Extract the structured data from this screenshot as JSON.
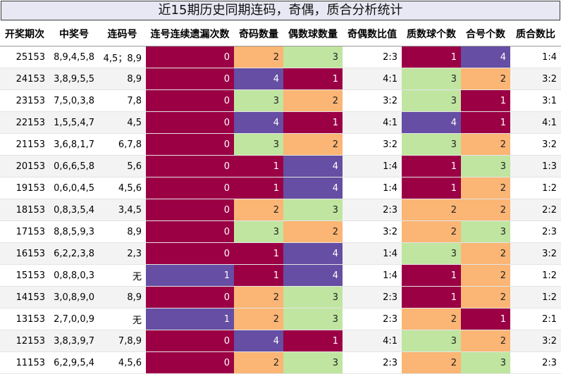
{
  "title": "近15期历史同期连码，奇偶，质合分析统计",
  "headers": [
    "开奖期次",
    "中奖号",
    "连码号",
    "连号连续遗漏次数",
    "奇码数量",
    "偶数球数量",
    "奇偶数比值",
    "质数球个数",
    "合号个数",
    "质合数比"
  ],
  "colors": {
    "crimson": "#9b0045",
    "orange": "#fbb574",
    "green": "#c0e5a0",
    "purple": "#654ea3"
  },
  "rows": [
    {
      "period": "25153",
      "nums": "8,9,4,5,8",
      "link": "4,5；8,9",
      "gap": "0",
      "gap_c": "crimson",
      "odd": "2",
      "odd_c": "orange",
      "even": "3",
      "even_c": "green",
      "oe": "2:3",
      "prime": "1",
      "prime_c": "crimson",
      "comp": "4",
      "comp_c": "purple",
      "pc": "1:4"
    },
    {
      "period": "24153",
      "nums": "3,8,9,5,5",
      "link": "8,9",
      "gap": "0",
      "gap_c": "crimson",
      "odd": "4",
      "odd_c": "purple",
      "even": "1",
      "even_c": "crimson",
      "oe": "4:1",
      "prime": "3",
      "prime_c": "green",
      "comp": "2",
      "comp_c": "orange",
      "pc": "3:2"
    },
    {
      "period": "23153",
      "nums": "7,5,0,3,8",
      "link": "7,8",
      "gap": "0",
      "gap_c": "crimson",
      "odd": "3",
      "odd_c": "green",
      "even": "2",
      "even_c": "orange",
      "oe": "3:2",
      "prime": "3",
      "prime_c": "green",
      "comp": "1",
      "comp_c": "crimson",
      "pc": "3:1"
    },
    {
      "period": "22153",
      "nums": "1,5,5,4,7",
      "link": "4,5",
      "gap": "0",
      "gap_c": "crimson",
      "odd": "4",
      "odd_c": "purple",
      "even": "1",
      "even_c": "crimson",
      "oe": "4:1",
      "prime": "4",
      "prime_c": "purple",
      "comp": "1",
      "comp_c": "crimson",
      "pc": "4:1"
    },
    {
      "period": "21153",
      "nums": "3,6,8,1,7",
      "link": "6,7,8",
      "gap": "0",
      "gap_c": "crimson",
      "odd": "3",
      "odd_c": "green",
      "even": "2",
      "even_c": "orange",
      "oe": "3:2",
      "prime": "3",
      "prime_c": "green",
      "comp": "2",
      "comp_c": "orange",
      "pc": "3:2"
    },
    {
      "period": "20153",
      "nums": "0,6,6,5,8",
      "link": "5,6",
      "gap": "0",
      "gap_c": "crimson",
      "odd": "1",
      "odd_c": "crimson",
      "even": "4",
      "even_c": "purple",
      "oe": "1:4",
      "prime": "1",
      "prime_c": "crimson",
      "comp": "3",
      "comp_c": "green",
      "pc": "1:3"
    },
    {
      "period": "19153",
      "nums": "0,6,0,4,5",
      "link": "4,5,6",
      "gap": "0",
      "gap_c": "crimson",
      "odd": "1",
      "odd_c": "crimson",
      "even": "4",
      "even_c": "purple",
      "oe": "1:4",
      "prime": "1",
      "prime_c": "crimson",
      "comp": "2",
      "comp_c": "orange",
      "pc": "1:2"
    },
    {
      "period": "18153",
      "nums": "0,8,3,5,4",
      "link": "3,4,5",
      "gap": "0",
      "gap_c": "crimson",
      "odd": "2",
      "odd_c": "orange",
      "even": "3",
      "even_c": "green",
      "oe": "2:3",
      "prime": "2",
      "prime_c": "orange",
      "comp": "2",
      "comp_c": "orange",
      "pc": "2:2"
    },
    {
      "period": "17153",
      "nums": "8,8,5,9,3",
      "link": "8,9",
      "gap": "0",
      "gap_c": "crimson",
      "odd": "3",
      "odd_c": "green",
      "even": "2",
      "even_c": "orange",
      "oe": "3:2",
      "prime": "2",
      "prime_c": "orange",
      "comp": "3",
      "comp_c": "green",
      "pc": "2:3"
    },
    {
      "period": "16153",
      "nums": "6,2,2,3,8",
      "link": "2,3",
      "gap": "0",
      "gap_c": "crimson",
      "odd": "1",
      "odd_c": "crimson",
      "even": "4",
      "even_c": "purple",
      "oe": "1:4",
      "prime": "3",
      "prime_c": "green",
      "comp": "2",
      "comp_c": "orange",
      "pc": "3:2"
    },
    {
      "period": "15153",
      "nums": "0,8,8,0,3",
      "link": "无",
      "gap": "1",
      "gap_c": "purple",
      "odd": "1",
      "odd_c": "crimson",
      "even": "4",
      "even_c": "purple",
      "oe": "1:4",
      "prime": "1",
      "prime_c": "crimson",
      "comp": "2",
      "comp_c": "orange",
      "pc": "1:2"
    },
    {
      "period": "14153",
      "nums": "3,0,8,9,0",
      "link": "8,9",
      "gap": "0",
      "gap_c": "crimson",
      "odd": "2",
      "odd_c": "orange",
      "even": "3",
      "even_c": "green",
      "oe": "2:3",
      "prime": "1",
      "prime_c": "crimson",
      "comp": "2",
      "comp_c": "orange",
      "pc": "1:2"
    },
    {
      "period": "13153",
      "nums": "2,7,0,0,9",
      "link": "无",
      "gap": "1",
      "gap_c": "purple",
      "odd": "2",
      "odd_c": "orange",
      "even": "3",
      "even_c": "green",
      "oe": "2:3",
      "prime": "2",
      "prime_c": "orange",
      "comp": "1",
      "comp_c": "crimson",
      "pc": "2:1"
    },
    {
      "period": "12153",
      "nums": "3,8,3,9,7",
      "link": "7,8,9",
      "gap": "0",
      "gap_c": "crimson",
      "odd": "4",
      "odd_c": "purple",
      "even": "1",
      "even_c": "crimson",
      "oe": "4:1",
      "prime": "3",
      "prime_c": "green",
      "comp": "2",
      "comp_c": "orange",
      "pc": "3:2"
    },
    {
      "period": "11153",
      "nums": "6,2,9,5,4",
      "link": "4,5,6",
      "gap": "0",
      "gap_c": "crimson",
      "odd": "2",
      "odd_c": "orange",
      "even": "3",
      "even_c": "green",
      "oe": "2:3",
      "prime": "2",
      "prime_c": "orange",
      "comp": "3",
      "comp_c": "green",
      "pc": "2:3"
    }
  ]
}
